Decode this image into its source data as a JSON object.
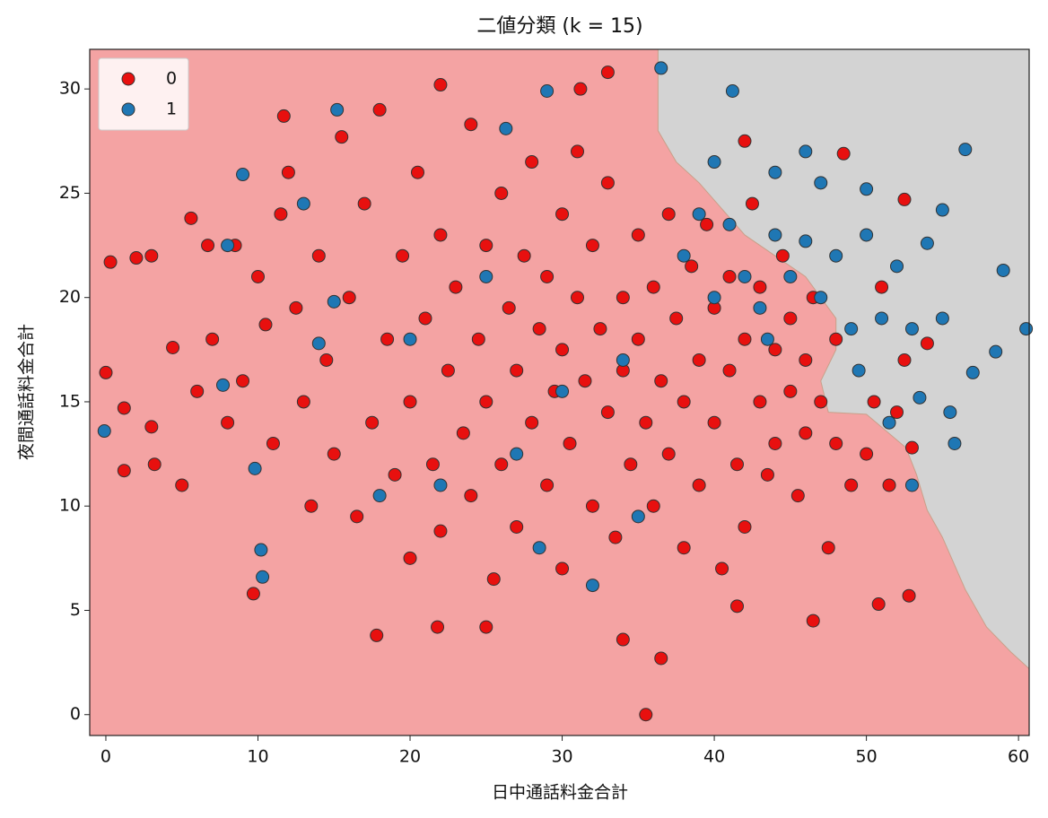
{
  "chart_data": {
    "type": "scatter",
    "title": "二値分類 (k = 15)",
    "x_label": "日中通話料金合計",
    "y_label": "夜間通話料金合計",
    "xlim": [
      -1.06,
      60.7
    ],
    "ylim": [
      -1.0,
      31.9
    ],
    "xticks": [
      0,
      10,
      20,
      30,
      40,
      50,
      60
    ],
    "yticks": [
      0,
      5,
      10,
      15,
      20,
      25,
      30
    ],
    "background": "#f4a3a3",
    "decision_boundary": {
      "color": "#d3d3d3",
      "x": [
        36.3,
        36.3,
        37.5,
        39,
        42,
        46,
        48,
        48,
        47,
        47.5,
        50,
        52.6,
        53.3,
        54,
        55,
        56.5,
        57.9,
        59.5,
        60.7,
        60.7
      ],
      "y": [
        31.9,
        28,
        26.5,
        25.5,
        23,
        21,
        19,
        17.5,
        16,
        14.5,
        14.4,
        12.8,
        11.5,
        9.8,
        8.5,
        6,
        4.2,
        3,
        2.2,
        31.9
      ]
    },
    "legend": "upper left",
    "series": [
      {
        "name": "0",
        "color": "#e8100f",
        "x": [
          5,
          6,
          7,
          8,
          8.5,
          9,
          10,
          10.5,
          11,
          11.5,
          12,
          12.5,
          13,
          13.5,
          14,
          14.5,
          15,
          15.5,
          16,
          16.5,
          17,
          17.5,
          18,
          18.5,
          19,
          19.5,
          20,
          20,
          20.5,
          21,
          21.5,
          22,
          22,
          22.5,
          23,
          23.5,
          24,
          24,
          24.5,
          25,
          25,
          25.5,
          26,
          26,
          26.5,
          27,
          27,
          27.5,
          28,
          28,
          28.5,
          29,
          29,
          29.5,
          30,
          30,
          30,
          30.5,
          31,
          31,
          31.5,
          32,
          32,
          32.5,
          33,
          33,
          33.5,
          34,
          34,
          34.5,
          35,
          35,
          35.5,
          36,
          36,
          36.5,
          37,
          37,
          37.5,
          38,
          38,
          38.5,
          39,
          39,
          39.5,
          40,
          40,
          40.5,
          41,
          41,
          41.5,
          42,
          42,
          42.5,
          43,
          43,
          43.5,
          44,
          44,
          44.5,
          45,
          45,
          45.5,
          46,
          46,
          46.5,
          47,
          47.5,
          48,
          48,
          49,
          50,
          50.5,
          51,
          51.5,
          52,
          52.5,
          53,
          35.5,
          36.5,
          17.8,
          21.8,
          25,
          34,
          46.5,
          52.8,
          50.8,
          41.5,
          9.7,
          22,
          33,
          31.2,
          11.7,
          42,
          48.5,
          52.5,
          54,
          0,
          0.3,
          2,
          3,
          1.2,
          1.2,
          3.2,
          4.4,
          3,
          5.6,
          6.7
        ],
        "y": [
          11,
          15.5,
          18,
          14,
          22.5,
          16,
          21,
          18.7,
          13,
          24,
          26,
          19.5,
          15,
          10,
          22,
          17,
          12.5,
          27.7,
          20,
          9.5,
          24.5,
          14,
          29,
          18,
          11.5,
          22,
          15,
          7.5,
          26,
          19,
          12,
          23,
          8.8,
          16.5,
          20.5,
          13.5,
          28.3,
          10.5,
          18,
          22.5,
          15,
          6.5,
          25,
          12,
          19.5,
          16.5,
          9,
          22,
          14,
          26.5,
          18.5,
          11,
          21,
          15.5,
          24,
          17.5,
          7,
          13,
          20,
          27,
          16,
          10,
          22.5,
          18.5,
          14.5,
          25.5,
          8.5,
          20,
          16.5,
          12,
          23,
          18,
          14,
          10,
          20.5,
          16,
          24,
          12.5,
          19,
          15,
          8,
          21.5,
          17,
          11,
          23.5,
          14,
          19.5,
          7,
          16.5,
          21,
          12,
          18,
          9,
          24.5,
          15,
          20.5,
          11.5,
          17.5,
          13,
          22,
          19,
          15.5,
          10.5,
          17,
          13.5,
          20,
          15,
          8,
          13,
          18,
          11,
          12.5,
          15,
          20.5,
          11,
          14.5,
          17,
          12.8,
          0,
          2.7,
          3.8,
          4.2,
          4.2,
          3.6,
          4.5,
          5.7,
          5.3,
          5.2,
          5.8,
          30.2,
          30.8,
          30,
          28.7,
          27.5,
          26.9,
          24.7,
          17.8,
          16.4,
          21.7,
          21.9,
          22,
          14.7,
          11.7,
          12,
          17.6,
          13.8,
          23.8,
          22.5
        ]
      },
      {
        "name": "1",
        "color": "#1f77b4",
        "x": [
          -0.1,
          36.5,
          41.2,
          29,
          56.5,
          59,
          60.5,
          58.5,
          55,
          10.2,
          10.3,
          9.8,
          15.2,
          9,
          26.3,
          53,
          55.8,
          57,
          38,
          39,
          40,
          41,
          42,
          43,
          44,
          45,
          46,
          47,
          48,
          49,
          50,
          51,
          52,
          53,
          54,
          55,
          49.5,
          51.5,
          53.5,
          55.5,
          47,
          44,
          46,
          50,
          43.5,
          27,
          30,
          22,
          35,
          32,
          20,
          25,
          34,
          15,
          14,
          13,
          8,
          7.7,
          18,
          28.5,
          40
        ],
        "y": [
          13.6,
          31,
          29.9,
          29.9,
          27.1,
          21.3,
          18.5,
          17.4,
          24.2,
          7.9,
          6.6,
          11.8,
          29,
          25.9,
          28.1,
          11,
          13,
          16.4,
          22,
          24,
          20,
          23.5,
          21,
          19.5,
          23,
          21,
          22.7,
          20,
          22,
          18.5,
          23,
          19,
          21.5,
          18.5,
          22.6,
          19,
          16.5,
          14,
          15.2,
          14.5,
          25.5,
          26,
          27,
          25.2,
          18,
          12.5,
          15.5,
          11,
          9.5,
          6.2,
          18,
          21,
          17,
          19.8,
          17.8,
          24.5,
          22.5,
          15.8,
          10.5,
          8,
          26.5
        ]
      }
    ]
  }
}
